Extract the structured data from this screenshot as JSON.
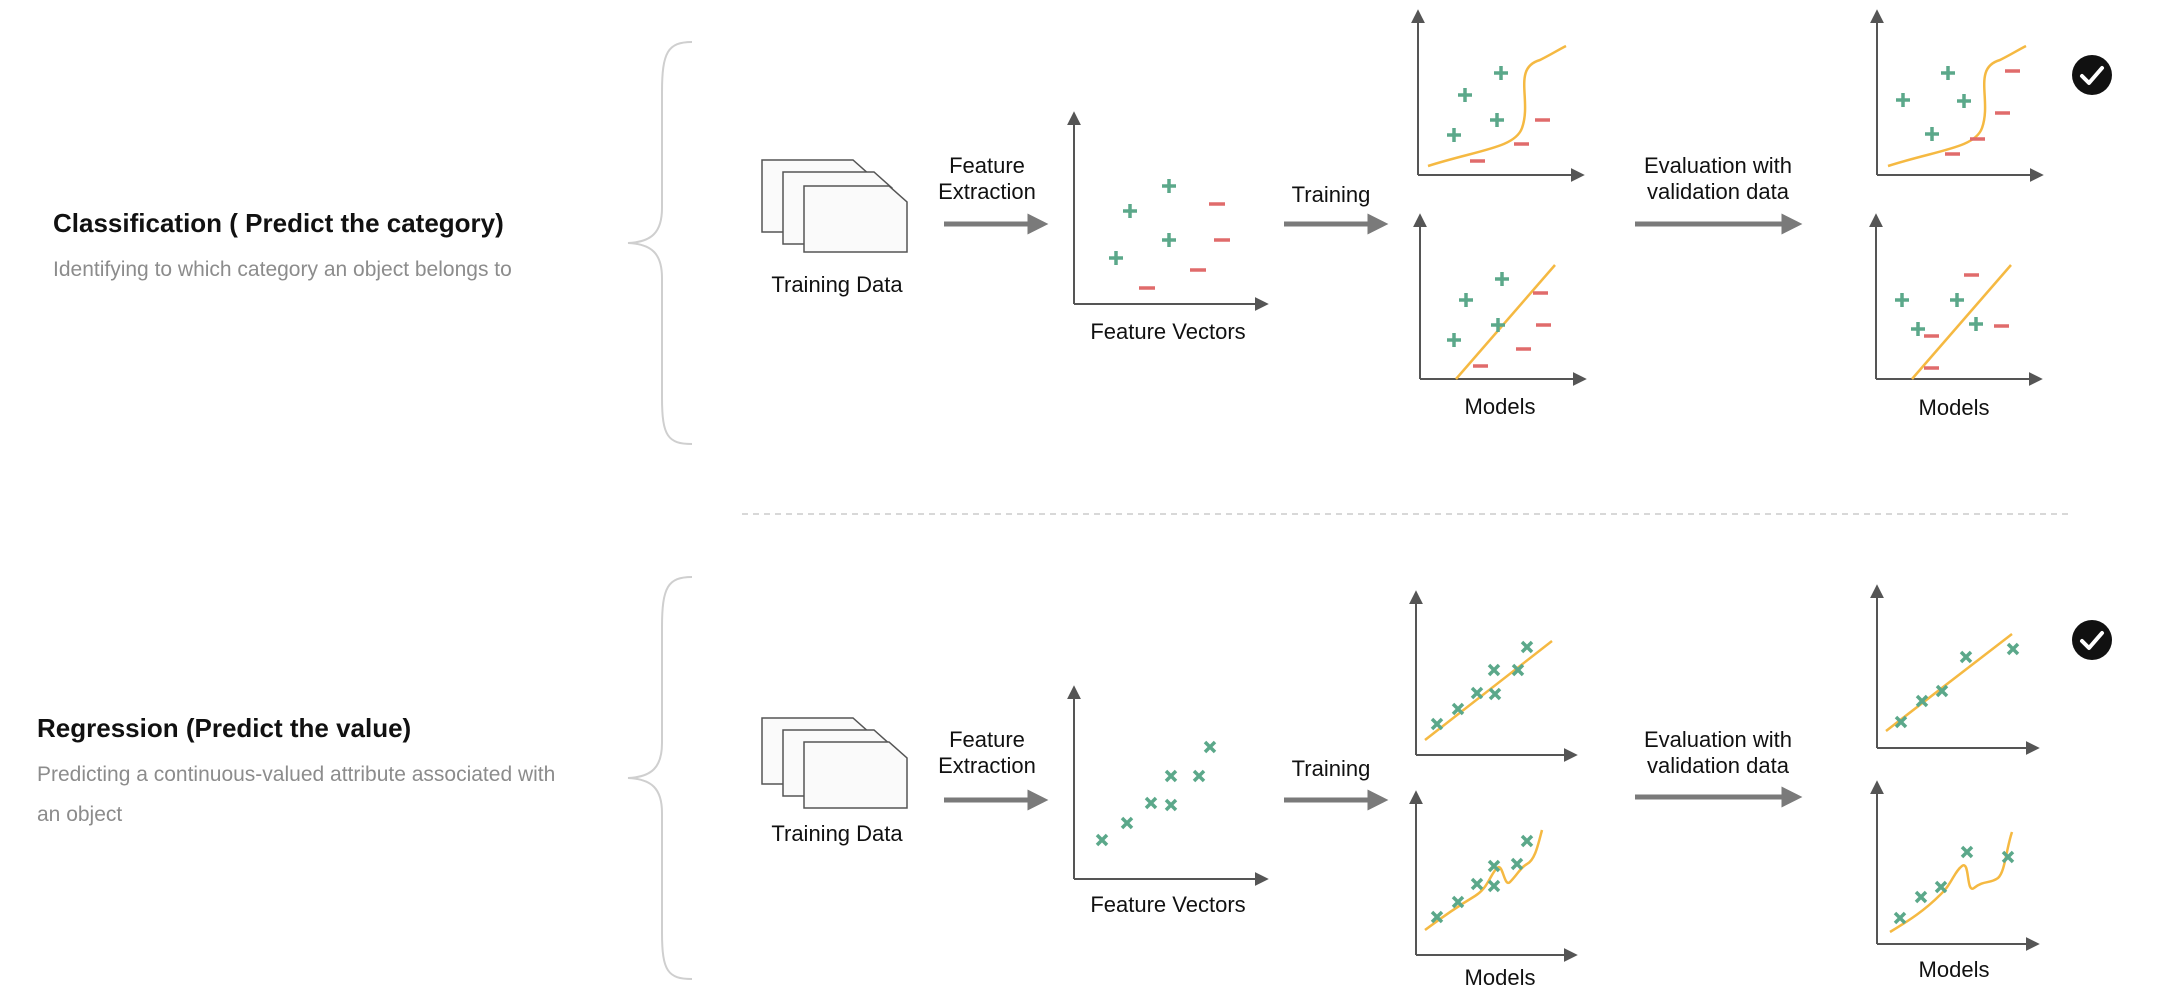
{
  "classification": {
    "title": "Classification ( Predict the category)",
    "description": "Identifying to which category an object belongs to",
    "training_data_label": "Training Data",
    "feature_extraction_label": [
      "Feature",
      "Extraction"
    ],
    "feature_vectors_label": "Feature Vectors",
    "training_label": "Training",
    "evaluation_label": [
      "Evaluation with",
      "validation data"
    ],
    "models_label": "Models",
    "selected_model_label": "Models"
  },
  "regression": {
    "title": "Regression (Predict the value)",
    "description": "Predicting a continuous-valued attribute associated with an object",
    "training_data_label": "Training Data",
    "feature_extraction_label": [
      "Feature",
      "Extraction"
    ],
    "feature_vectors_label": "Feature Vectors",
    "training_label": "Training",
    "evaluation_label": [
      "Evaluation with",
      "validation data"
    ],
    "models_label": "Models",
    "selected_model_label": "Models"
  },
  "colors": {
    "plus": "#5ba88a",
    "minus": "#e06b6b",
    "cross": "#5ba88a",
    "curve": "#f5b942",
    "arrow": "#7a7a7a",
    "axis": "#555555",
    "check": "#111111"
  },
  "icons": {
    "documents": "stacked-documents-icon",
    "check": "check-circle-icon"
  }
}
